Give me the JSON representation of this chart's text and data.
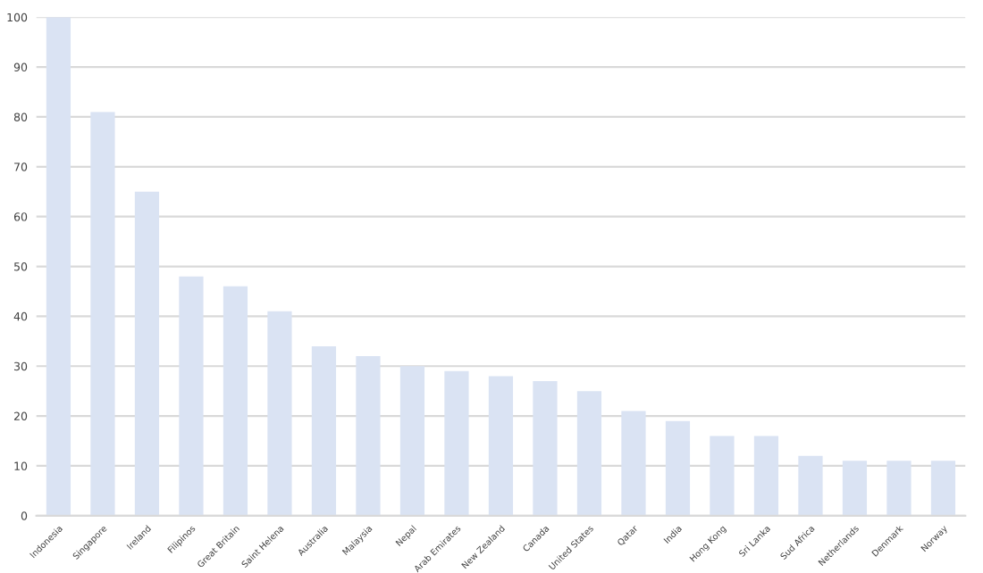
{
  "chart_data": {
    "type": "bar",
    "categories": [
      "Indonesia",
      "Singapore",
      "Ireland",
      "Filipinos",
      "Great Britain",
      "Saint Helena",
      "Australia",
      "Malaysia",
      "Nepal",
      "Arab Emirates",
      "New Zealand",
      "Canada",
      "United States",
      "Qatar",
      "India",
      "Hong Kong",
      "Sri Lanka",
      "Sud Africa",
      "Netherlands",
      "Denmark",
      "Norway"
    ],
    "values": [
      100,
      81,
      65,
      48,
      46,
      41,
      34,
      32,
      30,
      29,
      28,
      27,
      25,
      21,
      19,
      16,
      16,
      12,
      11,
      11,
      11
    ],
    "color": "#dae3f3",
    "ylim": [
      0,
      100
    ],
    "yticks": [
      0,
      10,
      20,
      30,
      40,
      50,
      60,
      70,
      80,
      90,
      100
    ],
    "grid": "y",
    "legend": false
  }
}
